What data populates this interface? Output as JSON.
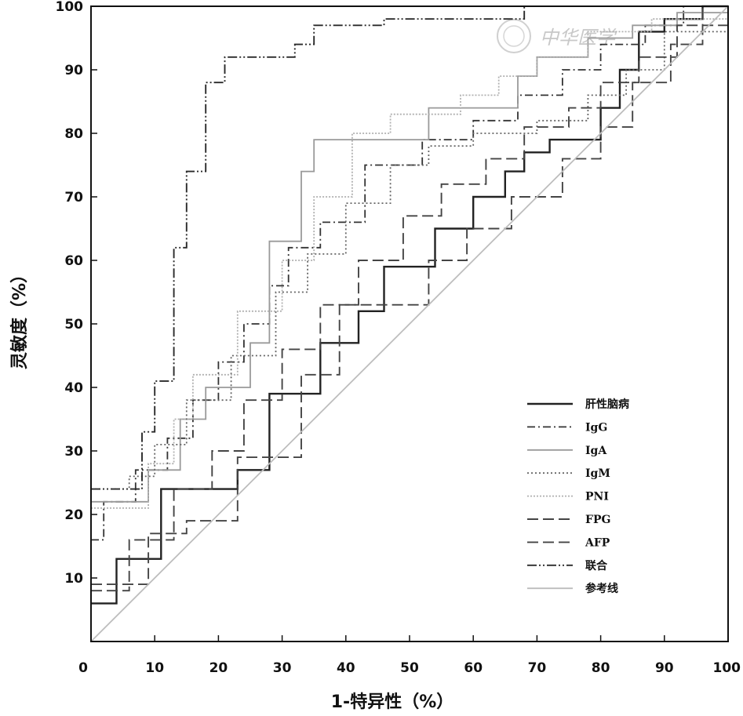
{
  "chart_data": {
    "type": "line",
    "title": "",
    "xlabel": "1-特异性（%）",
    "ylabel": "灵敏度（%）",
    "xlim": [
      0,
      100
    ],
    "ylim": [
      0,
      100
    ],
    "x_ticks": [
      "0",
      "10",
      "20",
      "30",
      "40",
      "50",
      "60",
      "70",
      "80",
      "90",
      "100"
    ],
    "y_ticks": [
      "10",
      "20",
      "30",
      "40",
      "50",
      "60",
      "70",
      "80",
      "90",
      "100"
    ],
    "grid": false,
    "legend_position": "bottom-right",
    "series": [
      {
        "name": "肝性脑病",
        "color": "#222222",
        "dash": "",
        "width": 2.4,
        "points": [
          [
            0,
            6
          ],
          [
            4,
            6
          ],
          [
            4,
            13
          ],
          [
            11,
            13
          ],
          [
            11,
            24
          ],
          [
            23,
            24
          ],
          [
            23,
            27
          ],
          [
            28,
            27
          ],
          [
            28,
            39
          ],
          [
            36,
            39
          ],
          [
            36,
            47
          ],
          [
            42,
            47
          ],
          [
            42,
            52
          ],
          [
            46,
            52
          ],
          [
            46,
            59
          ],
          [
            54,
            59
          ],
          [
            54,
            65
          ],
          [
            60,
            65
          ],
          [
            60,
            70
          ],
          [
            65,
            70
          ],
          [
            65,
            74
          ],
          [
            68,
            74
          ],
          [
            68,
            77
          ],
          [
            72,
            77
          ],
          [
            72,
            79
          ],
          [
            80,
            79
          ],
          [
            80,
            84
          ],
          [
            83,
            84
          ],
          [
            83,
            90
          ],
          [
            86,
            90
          ],
          [
            86,
            96
          ],
          [
            90,
            96
          ],
          [
            90,
            98
          ],
          [
            96,
            98
          ],
          [
            96,
            100
          ],
          [
            100,
            100
          ]
        ]
      },
      {
        "name": "IgG",
        "color": "#333333",
        "dash": "10,4,2,4",
        "width": 1.8,
        "points": [
          [
            0,
            16
          ],
          [
            2,
            16
          ],
          [
            2,
            22
          ],
          [
            7,
            22
          ],
          [
            7,
            27
          ],
          [
            12,
            27
          ],
          [
            12,
            32
          ],
          [
            16,
            32
          ],
          [
            16,
            38
          ],
          [
            20,
            38
          ],
          [
            20,
            44
          ],
          [
            24,
            44
          ],
          [
            24,
            50
          ],
          [
            28,
            50
          ],
          [
            28,
            56
          ],
          [
            31,
            56
          ],
          [
            31,
            62
          ],
          [
            36,
            62
          ],
          [
            36,
            66
          ],
          [
            43,
            66
          ],
          [
            43,
            75
          ],
          [
            52,
            75
          ],
          [
            52,
            79
          ],
          [
            60,
            79
          ],
          [
            60,
            82
          ],
          [
            67,
            82
          ],
          [
            67,
            86
          ],
          [
            74,
            86
          ],
          [
            74,
            90
          ],
          [
            80,
            90
          ],
          [
            80,
            94
          ],
          [
            87,
            94
          ],
          [
            87,
            97
          ],
          [
            93,
            97
          ],
          [
            93,
            100
          ],
          [
            100,
            100
          ]
        ]
      },
      {
        "name": "IgA",
        "color": "#9a9a9a",
        "dash": "",
        "width": 1.8,
        "points": [
          [
            0,
            22
          ],
          [
            9,
            22
          ],
          [
            9,
            27
          ],
          [
            14,
            27
          ],
          [
            14,
            35
          ],
          [
            18,
            35
          ],
          [
            18,
            40
          ],
          [
            25,
            40
          ],
          [
            25,
            47
          ],
          [
            28,
            47
          ],
          [
            28,
            63
          ],
          [
            33,
            63
          ],
          [
            33,
            74
          ],
          [
            35,
            74
          ],
          [
            35,
            79
          ],
          [
            53,
            79
          ],
          [
            53,
            84
          ],
          [
            67,
            84
          ],
          [
            67,
            89
          ],
          [
            70,
            89
          ],
          [
            70,
            92
          ],
          [
            78,
            92
          ],
          [
            78,
            95
          ],
          [
            85,
            95
          ],
          [
            85,
            97
          ],
          [
            92,
            97
          ],
          [
            92,
            99
          ],
          [
            100,
            99
          ]
        ]
      },
      {
        "name": "IgM",
        "color": "#666666",
        "dash": "2,3",
        "width": 1.8,
        "points": [
          [
            0,
            24
          ],
          [
            6,
            24
          ],
          [
            6,
            26
          ],
          [
            10,
            26
          ],
          [
            10,
            31
          ],
          [
            15,
            31
          ],
          [
            15,
            38
          ],
          [
            22,
            38
          ],
          [
            22,
            45
          ],
          [
            29,
            45
          ],
          [
            29,
            55
          ],
          [
            34,
            55
          ],
          [
            34,
            61
          ],
          [
            40,
            61
          ],
          [
            40,
            69
          ],
          [
            47,
            69
          ],
          [
            47,
            75
          ],
          [
            53,
            75
          ],
          [
            53,
            78
          ],
          [
            60,
            78
          ],
          [
            60,
            80
          ],
          [
            70,
            80
          ],
          [
            70,
            82
          ],
          [
            78,
            82
          ],
          [
            78,
            86
          ],
          [
            84,
            86
          ],
          [
            84,
            90
          ],
          [
            90,
            90
          ],
          [
            90,
            96
          ],
          [
            100,
            96
          ]
        ]
      },
      {
        "name": "PNI",
        "color": "#b0b0b0",
        "dash": "2,2",
        "width": 1.8,
        "points": [
          [
            0,
            21
          ],
          [
            9,
            21
          ],
          [
            9,
            28
          ],
          [
            13,
            28
          ],
          [
            13,
            35
          ],
          [
            16,
            35
          ],
          [
            16,
            42
          ],
          [
            23,
            42
          ],
          [
            23,
            52
          ],
          [
            30,
            52
          ],
          [
            30,
            60
          ],
          [
            35,
            60
          ],
          [
            35,
            70
          ],
          [
            41,
            70
          ],
          [
            41,
            80
          ],
          [
            47,
            80
          ],
          [
            47,
            83
          ],
          [
            58,
            83
          ],
          [
            58,
            86
          ],
          [
            64,
            86
          ],
          [
            64,
            89
          ],
          [
            70,
            89
          ],
          [
            70,
            92
          ],
          [
            78,
            92
          ],
          [
            78,
            96
          ],
          [
            88,
            96
          ],
          [
            88,
            98
          ],
          [
            100,
            98
          ]
        ]
      },
      {
        "name": "FPG",
        "color": "#444444",
        "dash": "14,6",
        "width": 1.9,
        "points": [
          [
            0,
            8
          ],
          [
            6,
            8
          ],
          [
            6,
            16
          ],
          [
            13,
            16
          ],
          [
            13,
            24
          ],
          [
            19,
            24
          ],
          [
            19,
            30
          ],
          [
            24,
            30
          ],
          [
            24,
            38
          ],
          [
            30,
            38
          ],
          [
            30,
            46
          ],
          [
            36,
            46
          ],
          [
            36,
            53
          ],
          [
            42,
            53
          ],
          [
            42,
            60
          ],
          [
            49,
            60
          ],
          [
            49,
            67
          ],
          [
            55,
            67
          ],
          [
            55,
            72
          ],
          [
            62,
            72
          ],
          [
            62,
            76
          ],
          [
            68,
            76
          ],
          [
            68,
            81
          ],
          [
            75,
            81
          ],
          [
            75,
            84
          ],
          [
            80,
            84
          ],
          [
            80,
            88
          ],
          [
            86,
            88
          ],
          [
            86,
            92
          ],
          [
            92,
            92
          ],
          [
            92,
            97
          ],
          [
            100,
            97
          ]
        ]
      },
      {
        "name": "AFP",
        "color": "#444444",
        "dash": "14,6",
        "width": 1.9,
        "points": [
          [
            0,
            9
          ],
          [
            9,
            9
          ],
          [
            9,
            17
          ],
          [
            15,
            17
          ],
          [
            15,
            19
          ],
          [
            23,
            19
          ],
          [
            23,
            29
          ],
          [
            33,
            29
          ],
          [
            33,
            42
          ],
          [
            39,
            42
          ],
          [
            39,
            53
          ],
          [
            53,
            53
          ],
          [
            53,
            60
          ],
          [
            59,
            60
          ],
          [
            59,
            65
          ],
          [
            66,
            65
          ],
          [
            66,
            70
          ],
          [
            74,
            70
          ],
          [
            74,
            76
          ],
          [
            80,
            76
          ],
          [
            80,
            81
          ],
          [
            85,
            81
          ],
          [
            85,
            88
          ],
          [
            91,
            88
          ],
          [
            91,
            94
          ],
          [
            96,
            94
          ],
          [
            96,
            100
          ],
          [
            100,
            100
          ]
        ]
      },
      {
        "name": "联合",
        "color": "#2a2a2a",
        "dash": "12,3,2,3,2,3",
        "width": 1.9,
        "points": [
          [
            0,
            24
          ],
          [
            8,
            24
          ],
          [
            8,
            33
          ],
          [
            10,
            33
          ],
          [
            10,
            41
          ],
          [
            13,
            41
          ],
          [
            13,
            62
          ],
          [
            15,
            62
          ],
          [
            15,
            74
          ],
          [
            18,
            74
          ],
          [
            18,
            88
          ],
          [
            21,
            88
          ],
          [
            21,
            92
          ],
          [
            32,
            92
          ],
          [
            32,
            94
          ],
          [
            35,
            94
          ],
          [
            35,
            97
          ],
          [
            46,
            97
          ],
          [
            46,
            98
          ],
          [
            68,
            98
          ],
          [
            68,
            100
          ],
          [
            100,
            100
          ]
        ]
      },
      {
        "name": "参考线",
        "color": "#bdbdbd",
        "dash": "",
        "width": 1.8,
        "points": [
          [
            0,
            0
          ],
          [
            100,
            100
          ]
        ]
      }
    ]
  },
  "watermark": "中华医学"
}
